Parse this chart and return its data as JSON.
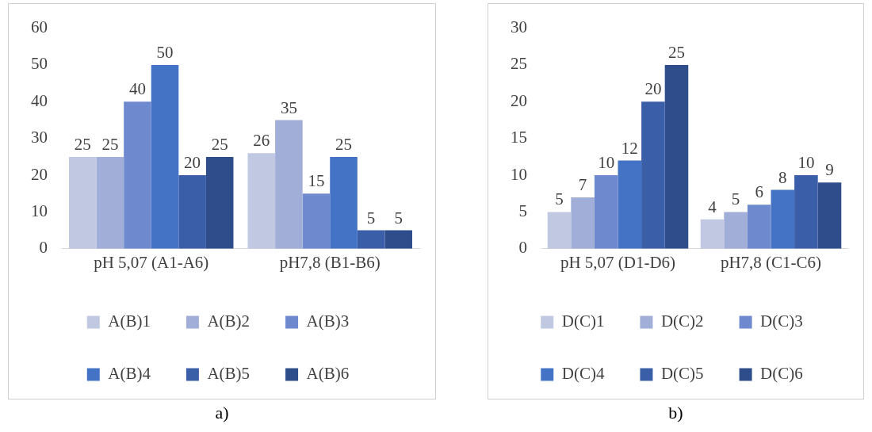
{
  "chart_data": [
    {
      "type": "bar",
      "categories": [
        "pH 5,07 (A1-A6)",
        "pH7,8 (B1-B6)"
      ],
      "series": [
        {
          "name": "A(B)1",
          "color": "#c0c8e2",
          "values": [
            25,
            26
          ]
        },
        {
          "name": "A(B)2",
          "color": "#a0aed8",
          "values": [
            25,
            35
          ]
        },
        {
          "name": "A(B)3",
          "color": "#6f89cf",
          "values": [
            40,
            15
          ]
        },
        {
          "name": "A(B)4",
          "color": "#4472c4",
          "values": [
            50,
            25
          ]
        },
        {
          "name": "A(B)5",
          "color": "#3a5ea8",
          "values": [
            20,
            5
          ]
        },
        {
          "name": "A(B)6",
          "color": "#2e4d8a",
          "values": [
            25,
            5
          ]
        }
      ],
      "ylim": [
        0,
        60
      ],
      "yticks": [
        0,
        10,
        20,
        30,
        40,
        50,
        60
      ],
      "grid": false,
      "legend": "bottom",
      "data_labels": true,
      "annotations": [
        "a)"
      ]
    },
    {
      "type": "bar",
      "categories": [
        "pH 5,07 (D1-D6)",
        "pH7,8 (C1-C6)"
      ],
      "series": [
        {
          "name": "D(C)1",
          "color": "#c0c8e2",
          "values": [
            5,
            4
          ]
        },
        {
          "name": "D(C)2",
          "color": "#a0aed8",
          "values": [
            7,
            5
          ]
        },
        {
          "name": "D(C)3",
          "color": "#6f89cf",
          "values": [
            10,
            6
          ]
        },
        {
          "name": "D(C)4",
          "color": "#4472c4",
          "values": [
            12,
            8
          ]
        },
        {
          "name": "D(C)5",
          "color": "#3a5ea8",
          "values": [
            20,
            10
          ]
        },
        {
          "name": "D(C)6",
          "color": "#2e4d8a",
          "values": [
            25,
            9
          ]
        }
      ],
      "ylim": [
        0,
        30
      ],
      "yticks": [
        0,
        5,
        10,
        15,
        20,
        25,
        30
      ],
      "grid": false,
      "legend": "bottom",
      "data_labels": true,
      "annotations": [
        "b)"
      ]
    }
  ]
}
